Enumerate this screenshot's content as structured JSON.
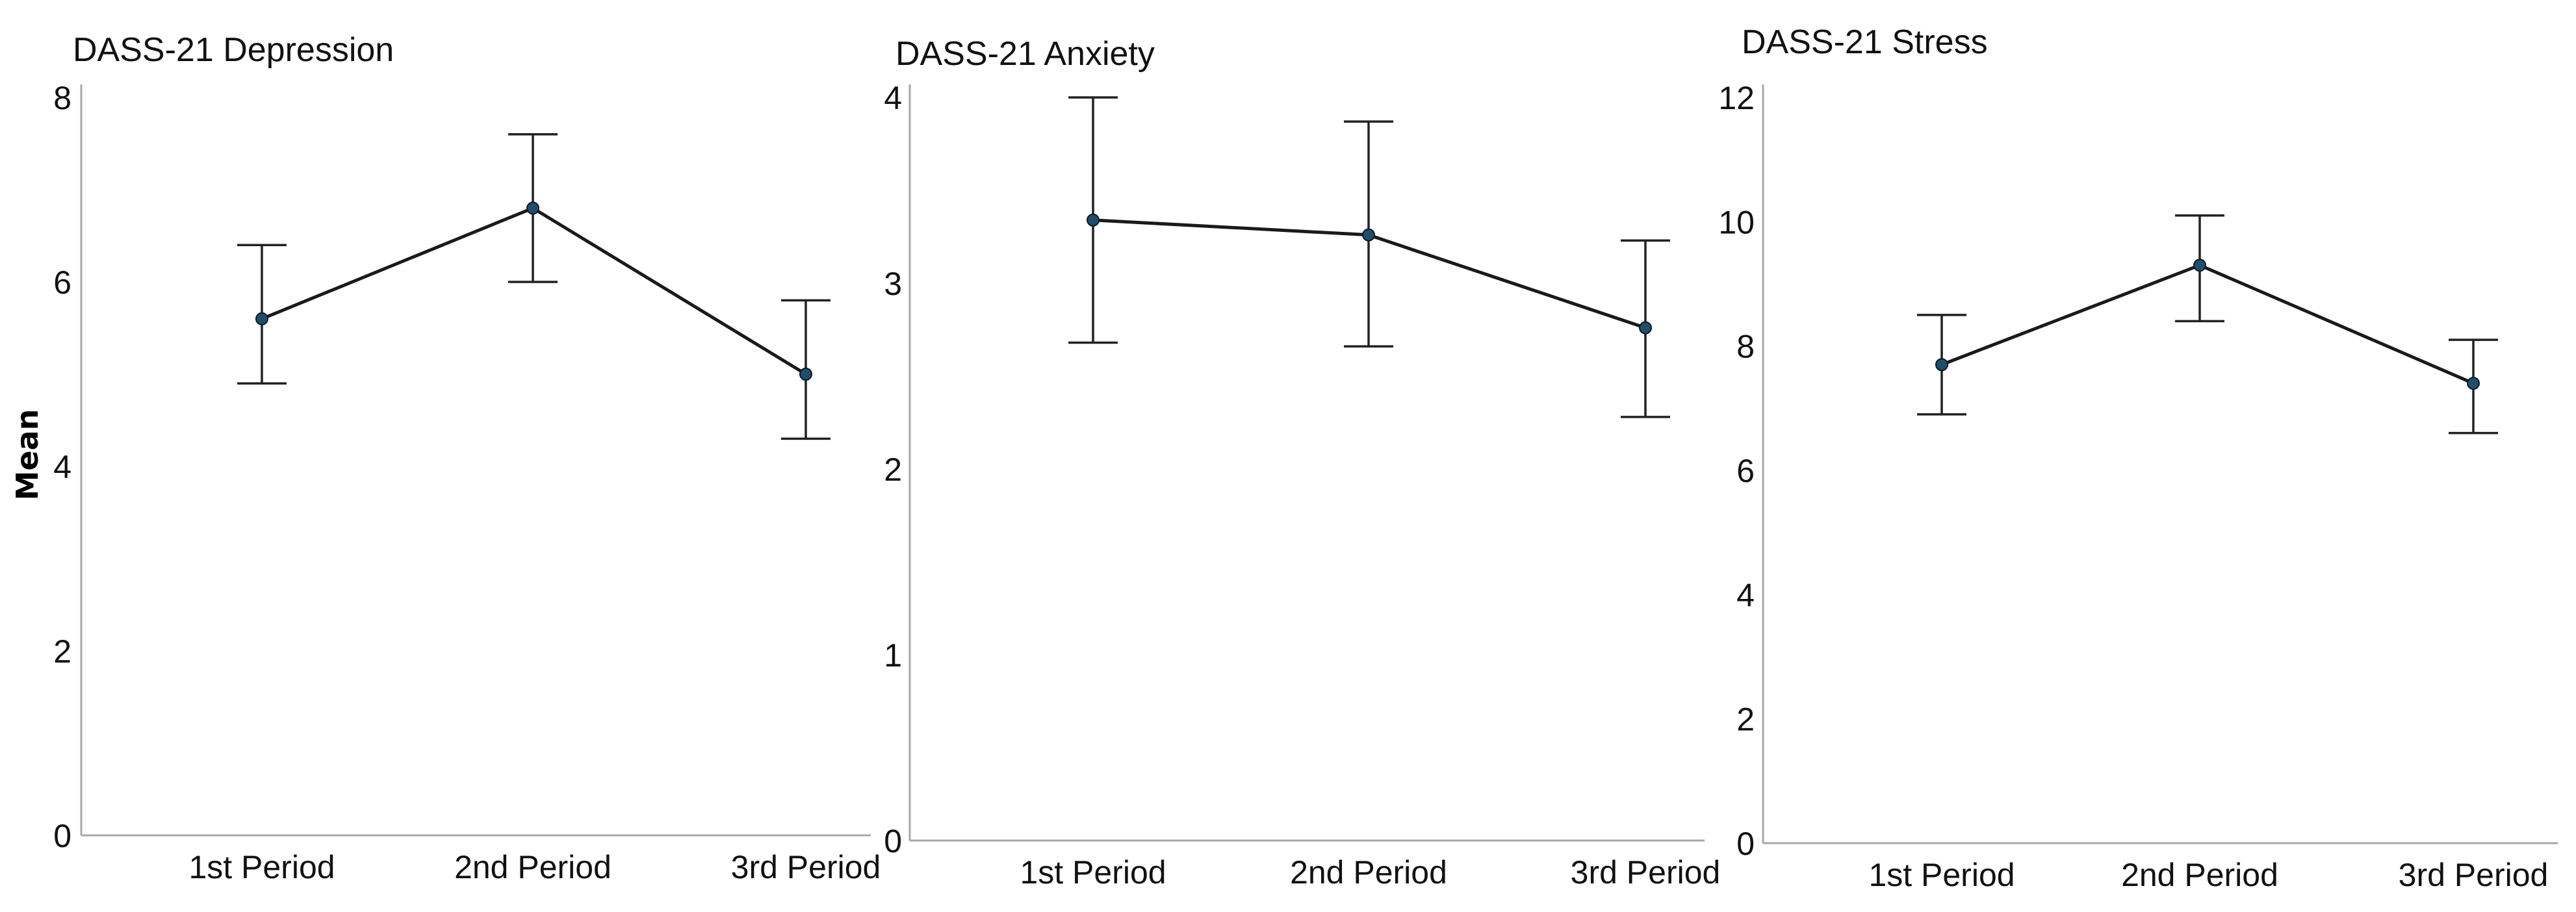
{
  "figure": {
    "ylabel": "Mean"
  },
  "colors": {
    "line": "#1a1a1a",
    "point": "#1f4e6b",
    "axis": "#a8a8a8",
    "error_bar": "#222222"
  },
  "chart_data": [
    {
      "type": "line",
      "title": "DASS-21 Depression",
      "xlabel": "",
      "ylabel": "Mean",
      "categories": [
        "1st Period",
        "2nd Period",
        "3rd Period"
      ],
      "values": [
        5.6,
        6.8,
        5.0
      ],
      "error_lower": [
        4.9,
        6.0,
        4.3
      ],
      "error_upper": [
        6.4,
        7.6,
        5.8
      ],
      "ylim": [
        0,
        8
      ],
      "yticks": [
        0,
        2,
        4,
        6,
        8
      ],
      "ytick_labels": [
        "0",
        "2",
        "4",
        "6",
        "8"
      ],
      "grid": false
    },
    {
      "type": "line",
      "title": "DASS-21 Anxiety",
      "xlabel": "",
      "ylabel": "",
      "categories": [
        "1st Period",
        "2nd Period",
        "3rd Period"
      ],
      "values": [
        3.34,
        3.26,
        2.76
      ],
      "error_lower": [
        2.68,
        2.66,
        2.28
      ],
      "error_upper": [
        4.0,
        3.87,
        3.23
      ],
      "ylim": [
        0,
        4
      ],
      "yticks": [
        0,
        1,
        2,
        3,
        4
      ],
      "ytick_labels": [
        "0",
        "1",
        "2",
        "3",
        "4"
      ],
      "grid": false
    },
    {
      "type": "line",
      "title": "DASS-21 Stress",
      "xlabel": "",
      "ylabel": "",
      "categories": [
        "1st Period",
        "2nd Period",
        "3rd Period"
      ],
      "values": [
        7.7,
        9.3,
        7.4
      ],
      "error_lower": [
        6.9,
        8.4,
        6.6
      ],
      "error_upper": [
        8.5,
        10.1,
        8.1
      ],
      "ylim": [
        0,
        12
      ],
      "yticks": [
        0,
        2,
        4,
        6,
        8,
        10,
        12
      ],
      "ytick_labels": [
        "0",
        "2",
        "4",
        "6",
        "8",
        "10",
        "12"
      ],
      "grid": false
    }
  ]
}
